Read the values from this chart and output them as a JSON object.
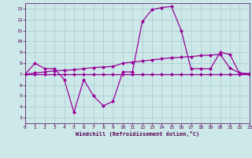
{
  "x": [
    0,
    1,
    2,
    3,
    4,
    5,
    6,
    7,
    8,
    9,
    10,
    11,
    12,
    13,
    14,
    15,
    16,
    17,
    18,
    19,
    20,
    21,
    22,
    23
  ],
  "line1": [
    7,
    8,
    7.5,
    7.5,
    6.5,
    3.5,
    6.5,
    5.0,
    4.1,
    4.5,
    7.2,
    7.2,
    11.8,
    12.9,
    13.1,
    13.2,
    11.0,
    7.5,
    7.5,
    7.5,
    9.0,
    8.8,
    7.0,
    7.0
  ],
  "line2": [
    7.0,
    7.1,
    7.2,
    7.3,
    7.35,
    7.4,
    7.5,
    7.6,
    7.65,
    7.7,
    8.0,
    8.1,
    8.2,
    8.3,
    8.4,
    8.5,
    8.55,
    8.6,
    8.7,
    8.75,
    8.8,
    7.55,
    7.1,
    7.05
  ],
  "line3": [
    7.0,
    7.0,
    7.0,
    7.0,
    7.0,
    7.0,
    7.0,
    7.0,
    7.0,
    7.0,
    7.0,
    7.0,
    7.0,
    7.0,
    7.0,
    7.0,
    7.0,
    7.0,
    7.0,
    7.0,
    7.0,
    7.0,
    7.0,
    7.0
  ],
  "xlim": [
    0,
    23
  ],
  "ylim": [
    2.5,
    13.5
  ],
  "yticks": [
    3,
    4,
    5,
    6,
    7,
    8,
    9,
    10,
    11,
    12,
    13
  ],
  "xticks": [
    0,
    1,
    2,
    3,
    4,
    5,
    6,
    7,
    8,
    9,
    10,
    11,
    12,
    13,
    14,
    15,
    16,
    17,
    18,
    19,
    20,
    21,
    22,
    23
  ],
  "line_color": "#990099",
  "bg_color": "#cce8e8",
  "grid_color": "#bbdddd",
  "xlabel": "Windchill (Refroidissement éolien,°C)",
  "marker": "D",
  "markersize": 2.0,
  "linewidth": 0.9
}
